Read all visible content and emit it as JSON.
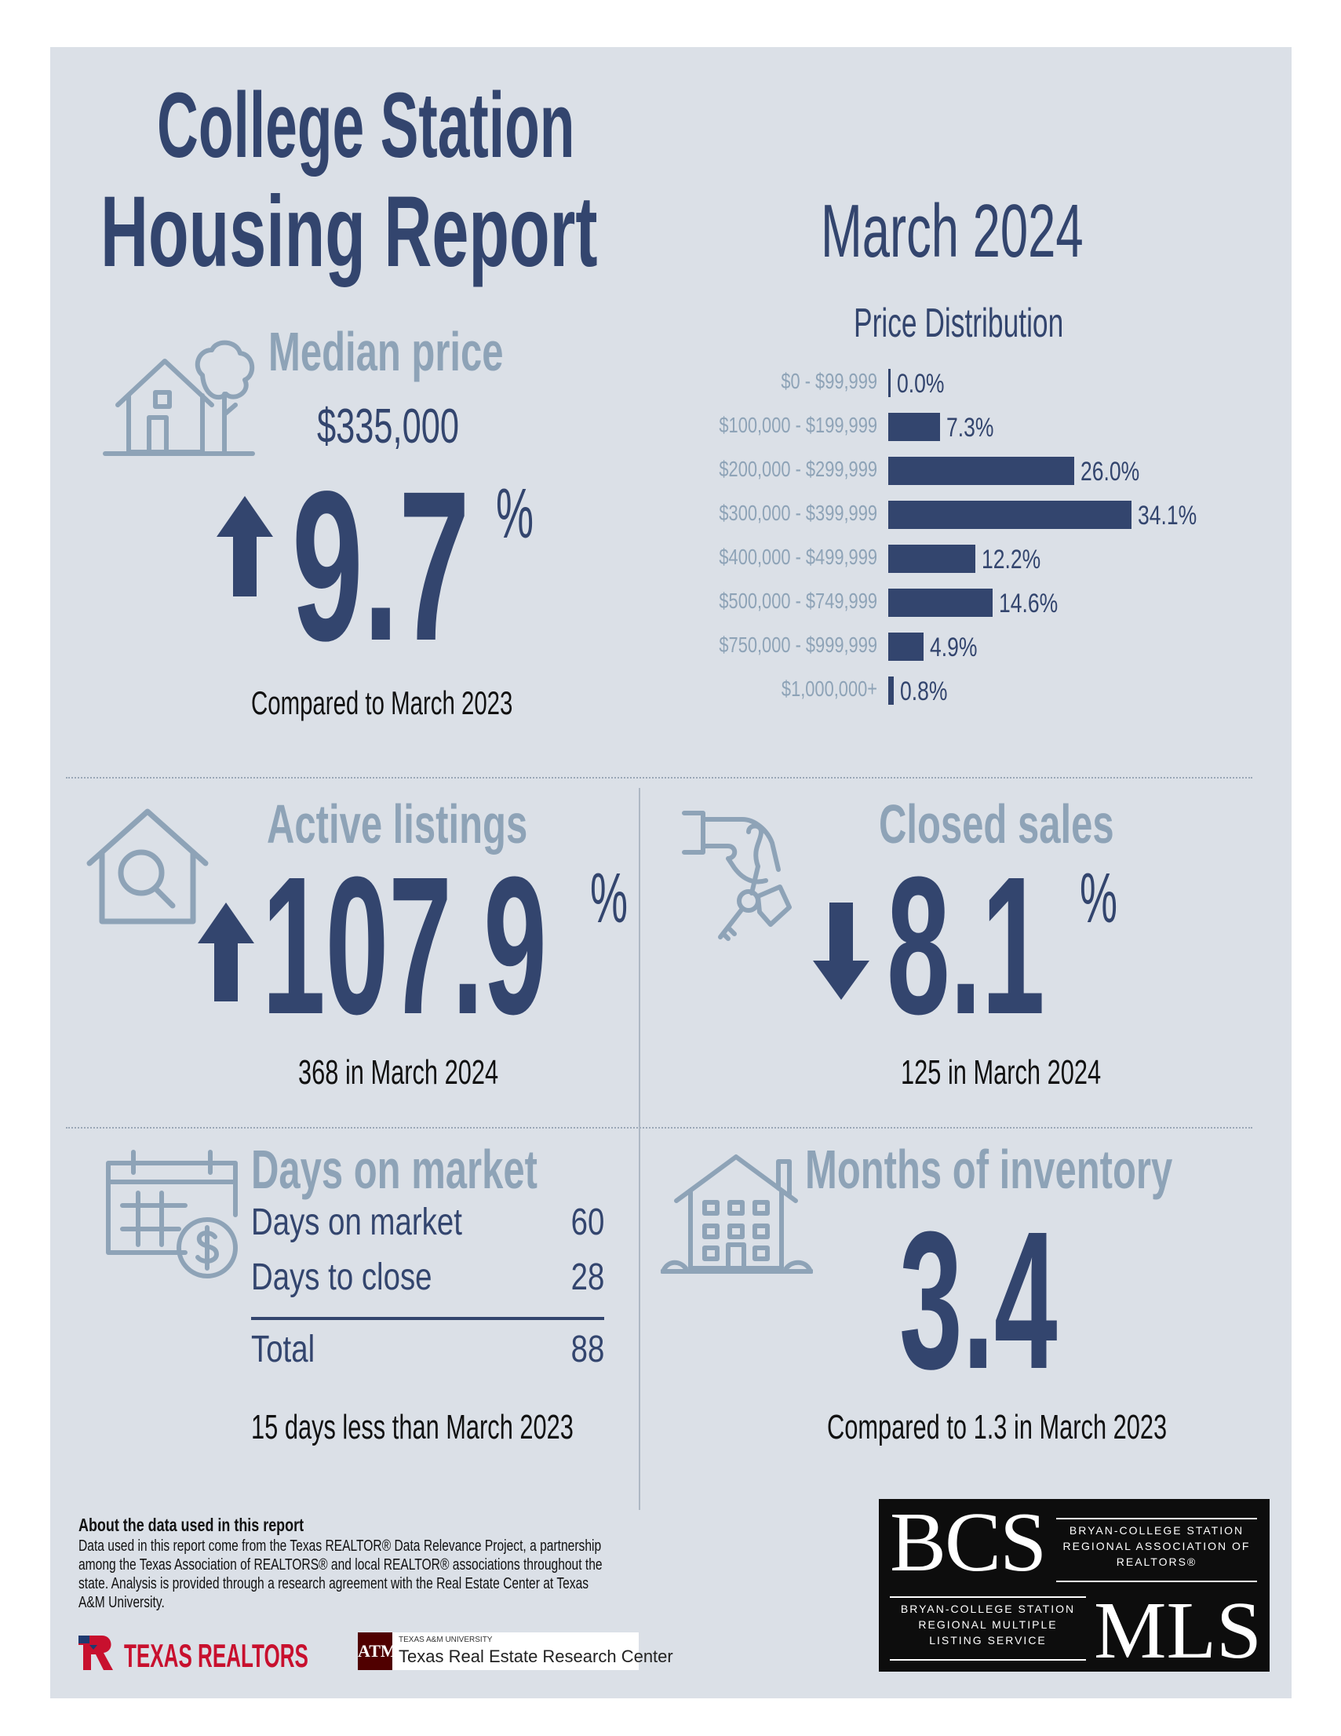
{
  "header": {
    "title_line1": "College Station",
    "title_line2": "Housing Report",
    "period": "March 2024"
  },
  "median_price": {
    "heading": "Median price",
    "value": "$335,000",
    "change": "9.7",
    "percent_sign": "%",
    "direction": "up",
    "note": "Compared to March 2023",
    "icon": "house-with-tree-icon"
  },
  "chart_data": {
    "type": "bar",
    "title": "Price Distribution",
    "orientation": "horizontal",
    "categories": [
      "$0 - $99,999",
      "$100,000 - $199,999",
      "$200,000 - $299,999",
      "$300,000 - $399,999",
      "$400,000 - $499,999",
      "$500,000 - $749,999",
      "$750,000 - $999,999",
      "$1,000,000+"
    ],
    "values": [
      0.0,
      7.3,
      26.0,
      34.1,
      12.2,
      14.6,
      4.9,
      0.8
    ],
    "value_labels": [
      "0.0%",
      "7.3%",
      "26.0%",
      "34.1%",
      "12.2%",
      "14.6%",
      "4.9%",
      "0.8%"
    ],
    "bar_color": "#33456e"
  },
  "active_listings": {
    "heading": "Active listings",
    "change": "107.9",
    "percent_sign": "%",
    "direction": "up",
    "note": "368 in March 2024",
    "icon": "house-magnifier-icon"
  },
  "closed_sales": {
    "heading": "Closed sales",
    "change": "8.1",
    "percent_sign": "%",
    "direction": "down",
    "note": "125 in March 2024",
    "icon": "hand-keys-icon"
  },
  "days_on_market": {
    "heading": "Days on market",
    "rows": [
      {
        "label": "Days on market",
        "value": "60"
      },
      {
        "label": "Days to close",
        "value": "28"
      }
    ],
    "total_label": "Total",
    "total_value": "88",
    "note": "15 days less than March 2023",
    "icon": "calendar-dollar-icon"
  },
  "months_inventory": {
    "heading": "Months of inventory",
    "value": "3.4",
    "note": "Compared to 1.3 in March 2023",
    "icon": "apartment-building-icon"
  },
  "footer": {
    "about_heading": "About the data used in this report",
    "about_text": "Data used in this report come from the Texas REALTOR® Data Relevance Project, a partnership among the Texas Association of REALTORS® and local REALTOR® associations throughout the state. Analysis is provided through a research agreement with the Real Estate Center at Texas A&M University.",
    "texas_realtors": "TEXAS REALTORS",
    "tamu_small": "TEXAS A&M UNIVERSITY",
    "tamu_center": "Texas Real Estate Research Center",
    "bcs_letters": "BCS",
    "bcs_org": "BRYAN-COLLEGE STATION REGIONAL ASSOCIATION OF REALTORS®",
    "mls_org": "BRYAN-COLLEGE STATION REGIONAL MULTIPLE LISTING SERVICE",
    "mls_letters": "MLS"
  },
  "colors": {
    "navy": "#33456e",
    "steel": "#8ea3b7",
    "panel_bg": "#dbe0e7",
    "texas_red": "#c8102e",
    "aggie_maroon": "#500000"
  }
}
